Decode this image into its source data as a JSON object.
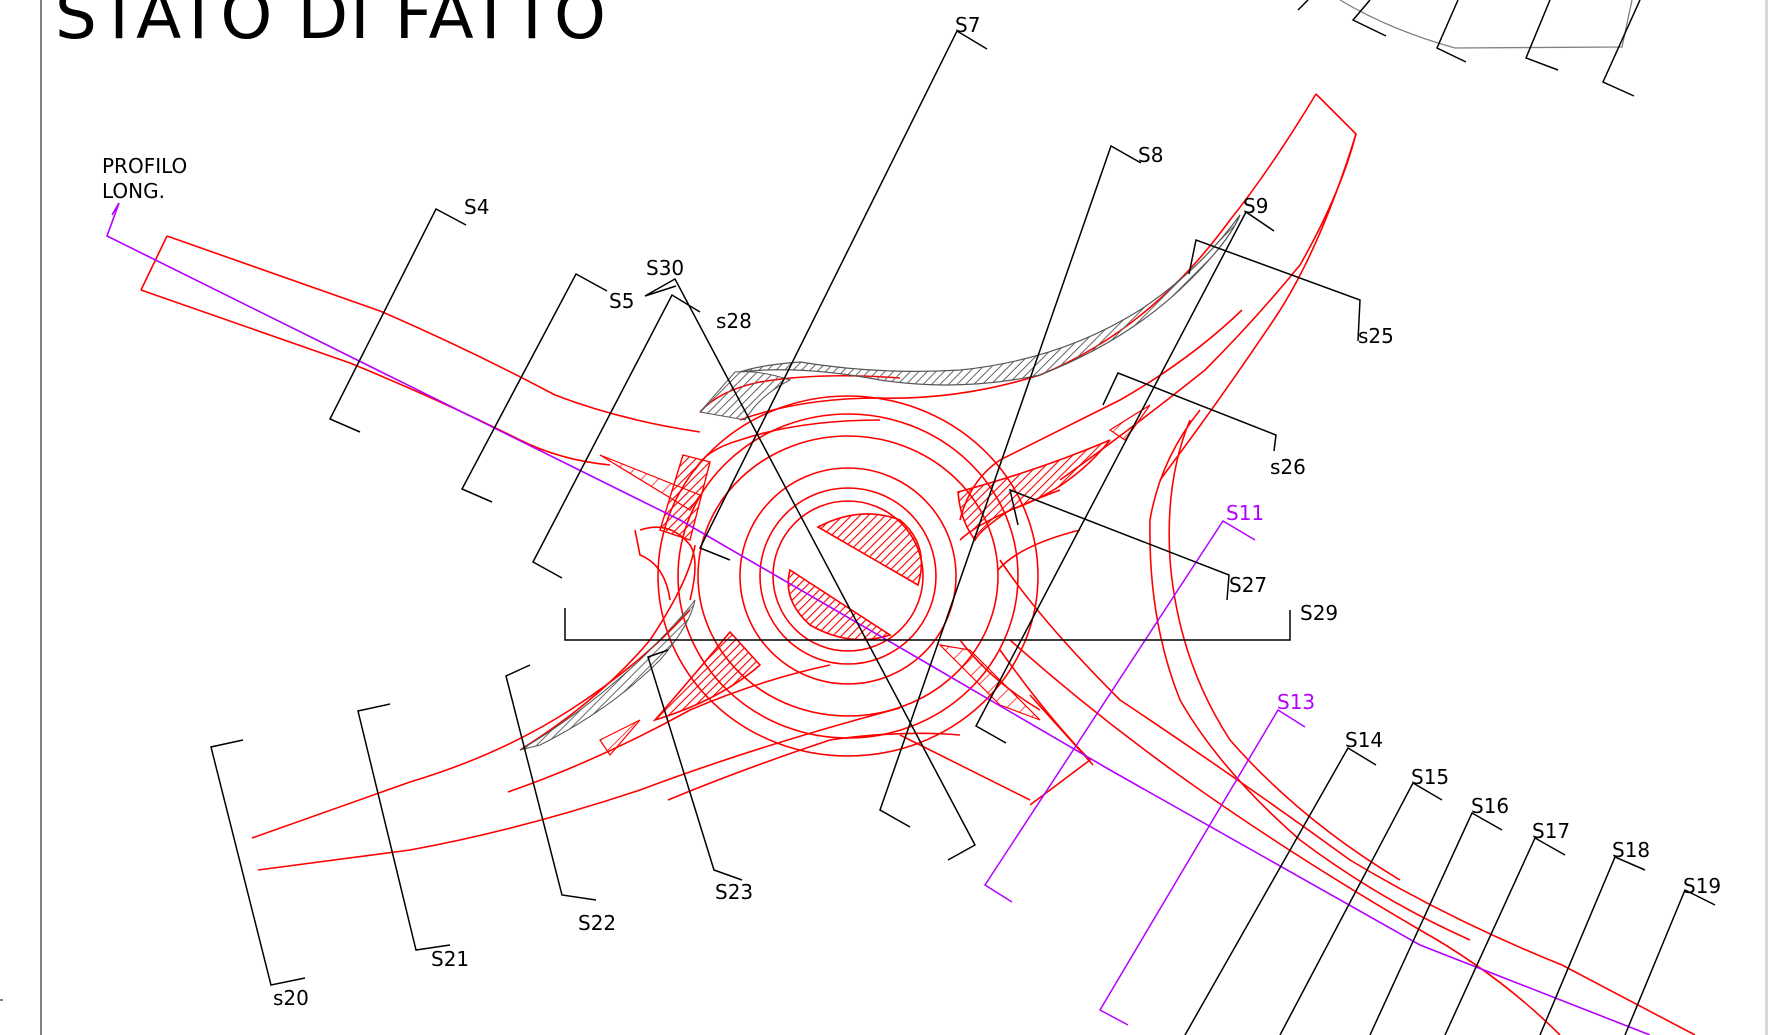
{
  "title": "STATO DI FATTO",
  "profile_label": {
    "line1": "PROFILO",
    "line2": "LONG."
  },
  "sections": [
    {
      "id": "s4",
      "label": "S4"
    },
    {
      "id": "s5",
      "label": "S5"
    },
    {
      "id": "s7",
      "label": "S7"
    },
    {
      "id": "s8",
      "label": "S8"
    },
    {
      "id": "s9",
      "label": "S9"
    },
    {
      "id": "s11",
      "label": "S11",
      "color": "#b400ff"
    },
    {
      "id": "s13",
      "label": "S13",
      "color": "#b400ff"
    },
    {
      "id": "s14",
      "label": "S14"
    },
    {
      "id": "s15",
      "label": "S15"
    },
    {
      "id": "s16",
      "label": "S16"
    },
    {
      "id": "s17",
      "label": "S17"
    },
    {
      "id": "s18",
      "label": "S18"
    },
    {
      "id": "s19",
      "label": "S19"
    },
    {
      "id": "s20",
      "label": "s20"
    },
    {
      "id": "s21",
      "label": "S21"
    },
    {
      "id": "s22",
      "label": "S22"
    },
    {
      "id": "s23",
      "label": "S23"
    },
    {
      "id": "s25",
      "label": "s25"
    },
    {
      "id": "s26",
      "label": "s26"
    },
    {
      "id": "s27",
      "label": "S27"
    },
    {
      "id": "s28",
      "label": "s28"
    },
    {
      "id": "s29",
      "label": "S29"
    },
    {
      "id": "s30",
      "label": "S30"
    }
  ],
  "colors": {
    "road": "#ff0000",
    "sections": "#000000",
    "profile": "#b400ff",
    "hatch": "#777777",
    "frame": "#000000"
  }
}
